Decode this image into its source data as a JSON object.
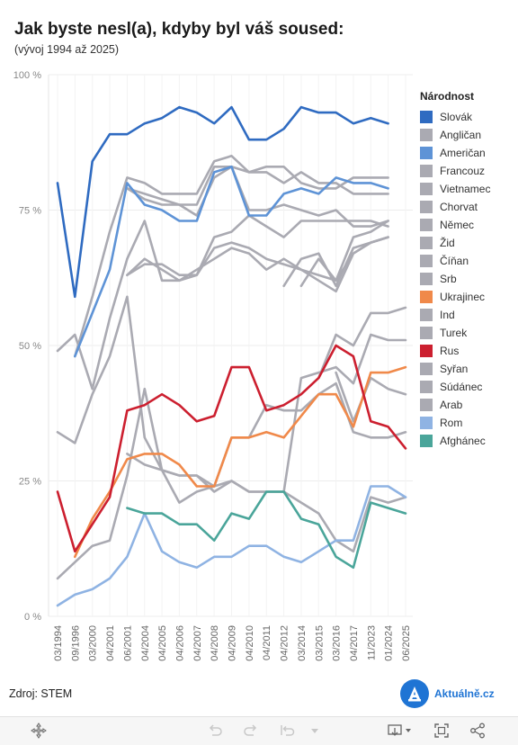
{
  "header": {
    "title": "Jak byste nesl(a), kdyby byl váš soused:",
    "subtitle": "(vývoj 1994 až 2025)"
  },
  "source": "Zdroj: STEM",
  "logo": {
    "name": "Aktuálně.cz",
    "letter": "A"
  },
  "legend_title": "Národnost",
  "toolbar": {
    "icons": [
      "move-icon",
      "undo-icon",
      "redo-icon",
      "revert-icon",
      "reset-dropdown-icon",
      "download-icon",
      "fullscreen-icon",
      "share-icon"
    ]
  },
  "colors": {
    "grey": "#aaaab2",
    "brand": "#1f74d4"
  },
  "chart_data": {
    "type": "line",
    "title": "Jak byste nesl(a), kdyby byl váš soused:",
    "subtitle": "(vývoj 1994 až 2025)",
    "xlabel": "",
    "ylabel": "",
    "ylim": [
      0,
      100
    ],
    "yticks": [
      0,
      25,
      50,
      75,
      100
    ],
    "ytick_labels": [
      "0 %",
      "25 %",
      "50 %",
      "75 %",
      "100 %"
    ],
    "legend_position": "right",
    "grid": true,
    "categories": [
      "03/1994",
      "09/1996",
      "03/2000",
      "04/2001",
      "06/2001",
      "04/2004",
      "04/2005",
      "04/2006",
      "04/2007",
      "04/2008",
      "04/2009",
      "04/2010",
      "04/2011",
      "04/2012",
      "03/2014",
      "03/2015",
      "03/2016",
      "04/2017",
      "11/2023",
      "01/2024",
      "06/2025"
    ],
    "series": [
      {
        "name": "Slovák",
        "color": "#2f6bc1",
        "values": [
          80,
          59,
          84,
          89,
          89,
          91,
          92,
          94,
          93,
          91,
          94,
          88,
          88,
          90,
          94,
          93,
          93,
          91,
          92,
          91,
          null
        ]
      },
      {
        "name": "Angličan",
        "color": "#aaaab2",
        "values": [
          null,
          48,
          59,
          71,
          81,
          80,
          78,
          78,
          78,
          84,
          85,
          82,
          83,
          83,
          80,
          79,
          79,
          81,
          81,
          81,
          null
        ]
      },
      {
        "name": "Američan",
        "color": "#5e93d6",
        "values": [
          null,
          48,
          56,
          64,
          80,
          76,
          75,
          73,
          73,
          82,
          83,
          74,
          74,
          78,
          79,
          78,
          81,
          80,
          80,
          79,
          null
        ]
      },
      {
        "name": "Francouz",
        "color": "#aaaab2",
        "values": [
          null,
          null,
          null,
          null,
          79,
          78,
          77,
          76,
          76,
          83,
          83,
          82,
          82,
          80,
          82,
          80,
          80,
          78,
          78,
          78,
          null
        ]
      },
      {
        "name": "Vietnamec",
        "color": "#aaaab2",
        "values": [
          49,
          52,
          42,
          55,
          66,
          73,
          62,
          62,
          63,
          70,
          71,
          74,
          72,
          70,
          73,
          73,
          73,
          73,
          73,
          72,
          null
        ]
      },
      {
        "name": "Chorvat",
        "color": "#aaaab2",
        "values": [
          null,
          null,
          null,
          null,
          79,
          77,
          76,
          76,
          74,
          81,
          83,
          75,
          75,
          76,
          75,
          74,
          75,
          72,
          72,
          73,
          null
        ]
      },
      {
        "name": "Němec",
        "color": "#aaaab2",
        "values": [
          null,
          null,
          null,
          null,
          63,
          65,
          65,
          63,
          63,
          68,
          69,
          68,
          66,
          65,
          64,
          63,
          62,
          70,
          71,
          73,
          null
        ]
      },
      {
        "name": "Žid",
        "color": "#aaaab2",
        "values": [
          null,
          null,
          null,
          null,
          null,
          null,
          null,
          null,
          null,
          null,
          null,
          null,
          null,
          61,
          66,
          67,
          61,
          68,
          69,
          70,
          null
        ]
      },
      {
        "name": "Číňan",
        "color": "#aaaab2",
        "values": [
          null,
          null,
          null,
          null,
          63,
          66,
          64,
          62,
          64,
          66,
          68,
          67,
          64,
          66,
          64,
          62,
          60,
          67,
          69,
          70,
          null
        ]
      },
      {
        "name": "Srb",
        "color": "#aaaab2",
        "values": [
          null,
          null,
          null,
          null,
          null,
          null,
          null,
          null,
          null,
          null,
          null,
          null,
          null,
          null,
          61,
          66,
          62,
          67,
          69,
          70,
          null
        ]
      },
      {
        "name": "Ukrajinec",
        "color": "#f0894a",
        "values": [
          null,
          11,
          18,
          23,
          29,
          30,
          30,
          28,
          24,
          24,
          33,
          33,
          34,
          33,
          37,
          41,
          41,
          35,
          45,
          45,
          46
        ]
      },
      {
        "name": "Ind",
        "color": "#aaaab2",
        "values": [
          null,
          null,
          null,
          null,
          null,
          null,
          null,
          null,
          null,
          null,
          null,
          null,
          null,
          null,
          null,
          44,
          52,
          50,
          56,
          56,
          57
        ]
      },
      {
        "name": "Turek",
        "color": "#aaaab2",
        "values": [
          34,
          32,
          41,
          48,
          59,
          33,
          27,
          26,
          26,
          24,
          25,
          23,
          23,
          23,
          44,
          45,
          46,
          43,
          52,
          51,
          51
        ]
      },
      {
        "name": "Rus",
        "color": "#cc1f2f",
        "values": [
          23,
          12,
          17,
          22,
          38,
          39,
          41,
          39,
          36,
          37,
          46,
          46,
          38,
          39,
          41,
          44,
          50,
          48,
          36,
          35,
          31
        ]
      },
      {
        "name": "Syřan",
        "color": "#aaaab2",
        "values": [
          null,
          null,
          null,
          null,
          null,
          null,
          null,
          null,
          null,
          null,
          null,
          null,
          null,
          null,
          null,
          null,
          45,
          36,
          44,
          42,
          41
        ]
      },
      {
        "name": "Súdánec",
        "color": "#aaaab2",
        "values": [
          null,
          null,
          null,
          null,
          30,
          28,
          27,
          21,
          23,
          24,
          33,
          33,
          39,
          38,
          38,
          41,
          43,
          34,
          33,
          33,
          34
        ]
      },
      {
        "name": "Arab",
        "color": "#aaaab2",
        "values": [
          7,
          10,
          13,
          14,
          26,
          42,
          27,
          26,
          26,
          23,
          25,
          23,
          23,
          23,
          21,
          19,
          14,
          12,
          22,
          21,
          22
        ]
      },
      {
        "name": "Rom",
        "color": "#8fb3e3",
        "values": [
          2,
          4,
          5,
          7,
          11,
          19,
          12,
          10,
          9,
          11,
          11,
          13,
          13,
          11,
          10,
          12,
          14,
          14,
          24,
          24,
          22
        ]
      },
      {
        "name": "Afghánec",
        "color": "#4aa59a",
        "values": [
          null,
          null,
          null,
          null,
          20,
          19,
          19,
          17,
          17,
          14,
          19,
          18,
          23,
          23,
          18,
          17,
          11,
          9,
          21,
          20,
          19
        ]
      }
    ]
  }
}
